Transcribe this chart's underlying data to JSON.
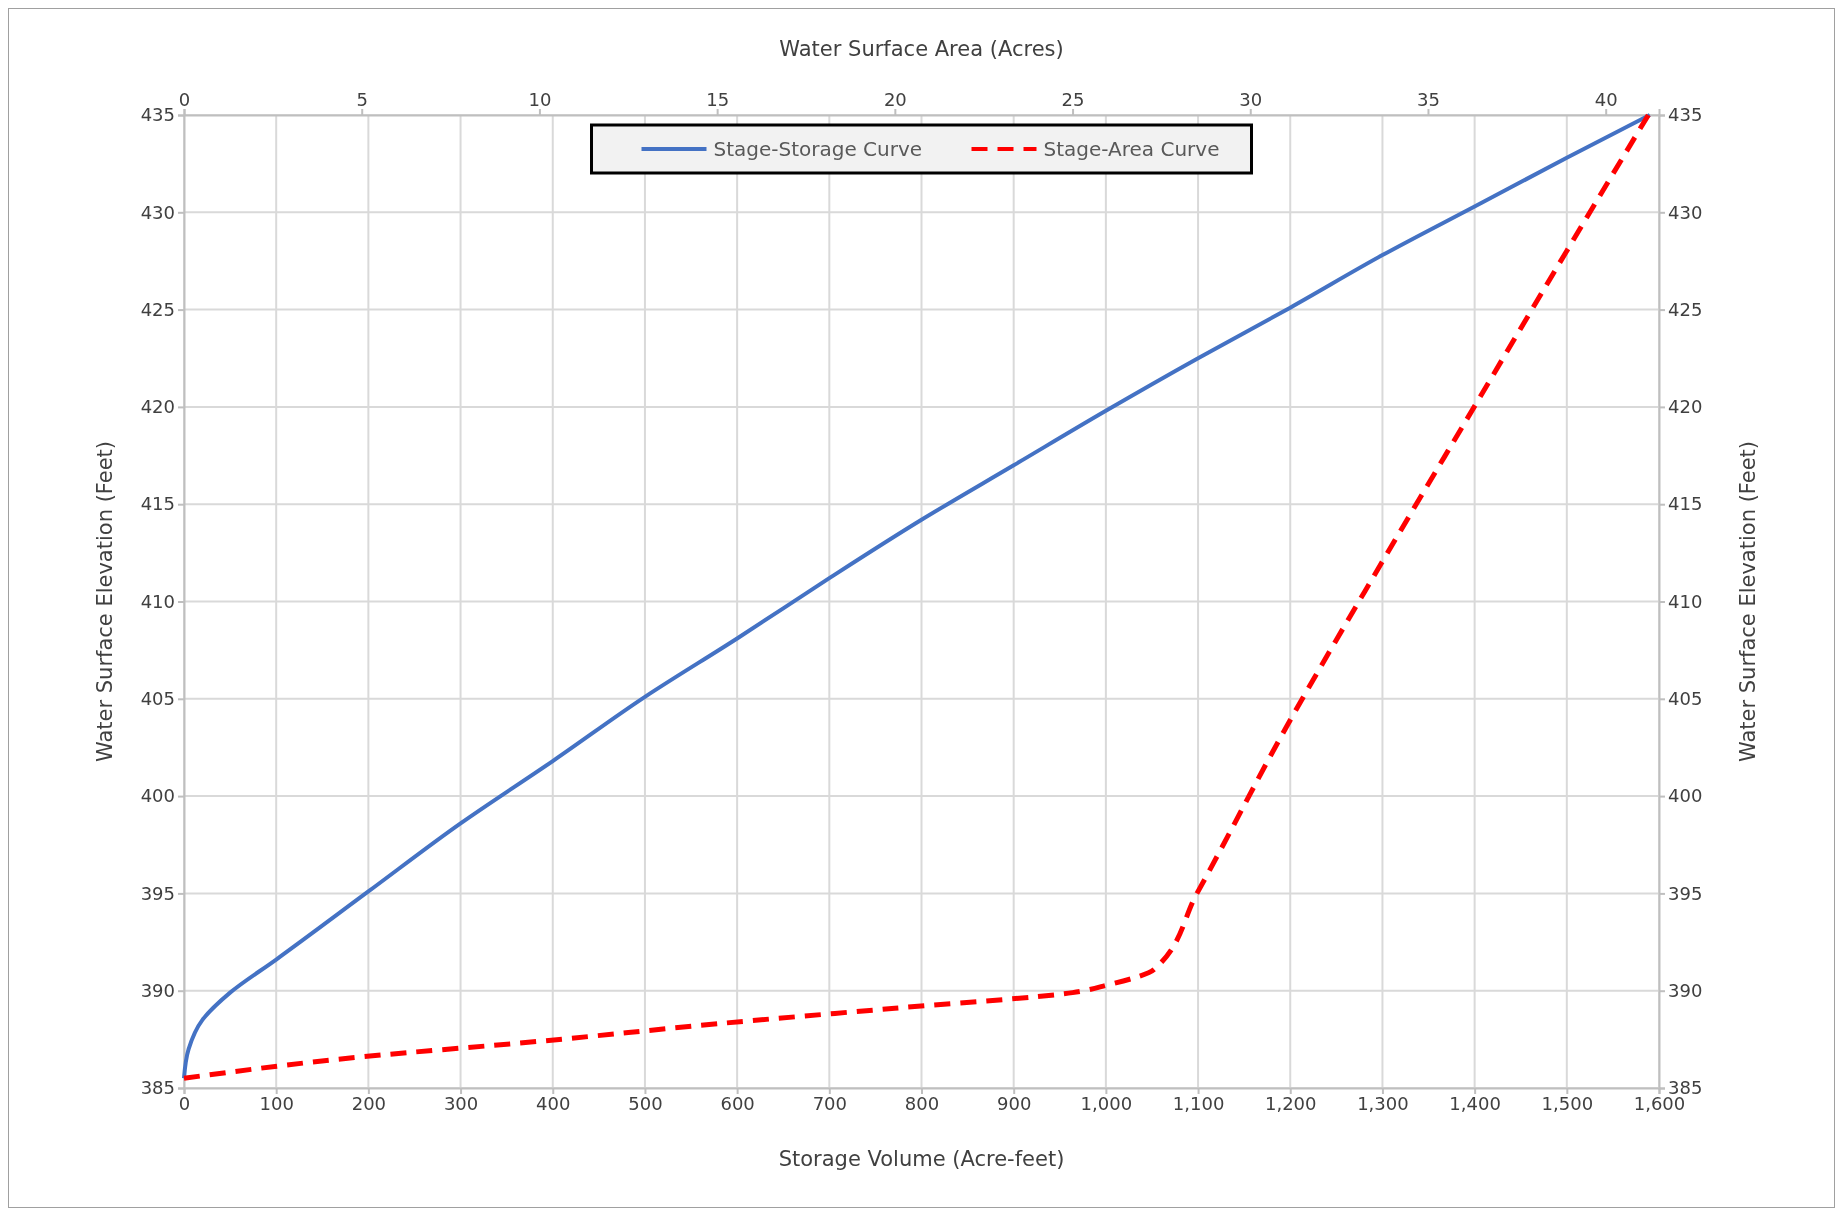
{
  "chart_data": {
    "type": "line",
    "xlabel": "Storage Volume (Acre-feet)",
    "x2label": "Water Surface Area (Acres)",
    "ylabel": "Water Surface Elevation (Feet)",
    "y2label": "Water Surface Elevation (Feet)",
    "xlim": [
      0,
      1600
    ],
    "xticks": [
      0,
      100,
      200,
      300,
      400,
      500,
      600,
      700,
      800,
      900,
      {
        "value": 1000,
        "label": "1,000"
      },
      {
        "value": 1100,
        "label": "1,100"
      },
      {
        "value": 1200,
        "label": "1,200"
      },
      {
        "value": 1300,
        "label": "1,300"
      },
      {
        "value": 1400,
        "label": "1,400"
      },
      {
        "value": 1500,
        "label": "1,500"
      },
      {
        "value": 1600,
        "label": "1,600"
      }
    ],
    "x2lim": [
      0,
      41.5
    ],
    "x2ticks": [
      0,
      5,
      10,
      15,
      20,
      25,
      30,
      35,
      40
    ],
    "ylim": [
      385,
      435
    ],
    "yticks": [
      385,
      390,
      395,
      400,
      405,
      410,
      415,
      420,
      425,
      430,
      435
    ],
    "y2lim": [
      385,
      435
    ],
    "y2ticks": [
      385,
      390,
      395,
      400,
      405,
      410,
      415,
      420,
      425,
      430,
      435
    ],
    "grid": true,
    "legend": "top",
    "marker": "none",
    "series": [
      {
        "name": "Stage-Storage Curve",
        "color": "#4472c4",
        "line_style": "solid",
        "x": [
          0,
          5,
          20,
          50,
          100,
          200,
          300,
          400,
          500,
          600,
          700,
          800,
          900,
          1000,
          1100,
          1200,
          1300,
          1400,
          1500,
          1590
        ],
        "values": [
          385.5,
          387,
          388.5,
          389.9,
          391.6,
          395.1,
          398.6,
          401.8,
          405.1,
          408.1,
          411.2,
          414.2,
          417,
          419.8,
          422.5,
          425.1,
          427.8,
          430.3,
          432.8,
          435
        ]
      },
      {
        "name": "Stage-Area Curve",
        "color": "#ff0000",
        "line_style": "dashed",
        "axis": "x2",
        "x": [
          0,
          5,
          10,
          15,
          20,
          25,
          26,
          27.3,
          28.5,
          31,
          33.7,
          36.3,
          38.9,
          41.2
        ],
        "values": [
          385.5,
          386.6,
          387.4,
          388.3,
          389.1,
          389.9,
          390.3,
          391.1,
          395,
          403.5,
          412,
          420,
          428,
          435
        ]
      }
    ]
  }
}
